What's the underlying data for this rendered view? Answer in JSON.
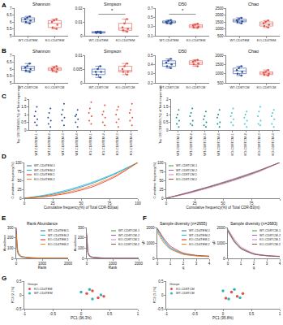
{
  "chart_data": [
    {
      "type": "box",
      "panel": "A",
      "title": "Shannon",
      "categories": [
        "WT-CD4TEM",
        "KO-CD4TEM"
      ],
      "colors": [
        "#2b4c9b",
        "#e0524a"
      ],
      "values": [
        [
          6.3,
          6.1,
          6.0,
          6.2,
          6.4,
          5.9
        ],
        [
          6.0,
          5.6,
          6.2,
          5.5,
          5.8,
          6.1
        ]
      ],
      "ylim": [
        5,
        7
      ],
      "yticks": [
        5,
        5.5,
        6,
        6.5,
        7
      ]
    },
    {
      "type": "box",
      "title": "Simpson",
      "categories": [
        "WT-CD4TEM",
        "KO-CD4TEM"
      ],
      "colors": [
        "#2b4c9b",
        "#e0524a"
      ],
      "values": [
        [
          0.002,
          0.003,
          0.002,
          0.0025,
          0.003,
          0.002
        ],
        [
          0.004,
          0.009,
          0.006,
          0.003,
          0.012,
          0.005
        ]
      ],
      "ylim": [
        0,
        0.02
      ],
      "yticks": [
        0,
        0.01,
        0.02
      ],
      "annotations": [
        {
          "text": "*"
        }
      ]
    },
    {
      "type": "box",
      "title": "D50",
      "categories": [
        "WT-CD4TEM",
        "KO-CD4TEM"
      ],
      "colors": [
        "#2b4c9b",
        "#e0524a"
      ],
      "values": [
        [
          0.42,
          0.38,
          0.4,
          0.36,
          0.44,
          0.39
        ],
        [
          0.3,
          0.34,
          0.28,
          0.32,
          0.36,
          0.27
        ]
      ],
      "ylim": [
        0.1,
        0.7
      ],
      "yticks": [
        0.1,
        0.3,
        0.5,
        0.7
      ],
      "annotations": [
        {
          "text": "*"
        }
      ]
    },
    {
      "type": "box",
      "title": "Chao",
      "categories": [
        "WT-CD4TEM",
        "KO-CD4TEM"
      ],
      "colors": [
        "#2b4c9b",
        "#e0524a"
      ],
      "values": [
        [
          1700,
          1500,
          1600,
          1400,
          1800,
          1550
        ],
        [
          1300,
          1600,
          1200,
          1500,
          1400,
          1100
        ]
      ],
      "ylim": [
        500,
        2500
      ],
      "yticks": [
        500,
        1000,
        1500,
        2000,
        2500
      ]
    },
    {
      "type": "box",
      "panel": "B",
      "title": "Shannon",
      "categories": [
        "WT-CD8TCM",
        "KO-CD8TCM"
      ],
      "colors": [
        "#2b4c9b",
        "#e0524a"
      ],
      "values": [
        [
          6.2,
          6.0,
          5.8,
          6.4,
          6.1,
          5.9
        ],
        [
          6.0,
          5.9,
          6.2,
          5.8,
          6.1,
          6.0
        ]
      ],
      "ylim": [
        5,
        7
      ],
      "yticks": [
        5,
        5.5,
        6,
        6.5,
        7
      ]
    },
    {
      "type": "box",
      "title": "Simpson",
      "categories": [
        "WT-CD8TCM",
        "KO-CD8TCM"
      ],
      "colors": [
        "#2b4c9b",
        "#e0524a"
      ],
      "values": [
        [
          0.004,
          0.003,
          0.006,
          0.005,
          0.002,
          0.004
        ],
        [
          0.005,
          0.004,
          0.006,
          0.003,
          0.007,
          0.004
        ]
      ],
      "ylim": [
        0,
        0.01
      ],
      "yticks": [
        0,
        0.005,
        0.01
      ]
    },
    {
      "type": "box",
      "title": "D50",
      "categories": [
        "WT-CD8TCM",
        "KO-CD8TCM"
      ],
      "colors": [
        "#2b4c9b",
        "#e0524a"
      ],
      "values": [
        [
          0.4,
          0.44,
          0.38,
          0.46,
          0.42,
          0.36
        ],
        [
          0.43,
          0.4,
          0.45,
          0.38,
          0.41,
          0.44
        ]
      ],
      "ylim": [
        0.2,
        0.5
      ],
      "yticks": [
        0.2,
        0.3,
        0.4,
        0.5
      ]
    },
    {
      "type": "box",
      "title": "Chao",
      "categories": [
        "WT-CD8TCM",
        "KO-CD8TCM"
      ],
      "colors": [
        "#2b4c9b",
        "#e0524a"
      ],
      "values": [
        [
          1200,
          1000,
          1400,
          900,
          1100,
          1300
        ],
        [
          1000,
          1100,
          900,
          1200,
          1050,
          950
        ]
      ],
      "ylim": [
        500,
        2000
      ],
      "yticks": [
        500,
        1000,
        1500,
        2000
      ]
    },
    {
      "type": "strip",
      "panel": "C",
      "y_label": "Top 100 CDR-B3 (%) of Total sequences",
      "categories": [
        "WT-CD4TEM-1",
        "WT-CD4TEM-2",
        "WT-CD4TEM-3",
        "WT-CD4TEM-4",
        "KO-CD4TEM-1",
        "KO-CD4TEM-2",
        "KO-CD4TEM-3",
        "KO-CD4TEM-4"
      ],
      "colors": [
        "#2b4c9b",
        "#2b4c9b",
        "#2b4c9b",
        "#2b4c9b",
        "#e0524a",
        "#e0524a",
        "#e0524a",
        "#e0524a"
      ],
      "values": [
        [
          0.3,
          0.5,
          0.7,
          0.9,
          1.2,
          1.5
        ],
        [
          0.2,
          0.4,
          0.6,
          0.8,
          1.1,
          1.4
        ],
        [
          0.3,
          0.6,
          0.8,
          1.0,
          1.3,
          1.7
        ],
        [
          0.2,
          0.5,
          0.7,
          0.9,
          1.0,
          1.3
        ],
        [
          0.4,
          0.6,
          0.9,
          1.1,
          1.4,
          1.8
        ],
        [
          0.3,
          0.5,
          0.8,
          1.0,
          1.2,
          1.6
        ],
        [
          0.2,
          0.5,
          0.7,
          1.0,
          1.3,
          1.5
        ],
        [
          0.3,
          0.6,
          0.8,
          1.1,
          1.3,
          1.7
        ]
      ],
      "ylim": [
        0,
        2
      ],
      "yticks": [
        0,
        0.5,
        1,
        1.5,
        2
      ]
    },
    {
      "type": "strip",
      "y_label": "Top 100 CDR-B3 (%) of Total sequences",
      "categories": [
        "WT-CD8TCM-1",
        "WT-CD8TCM-2",
        "WT-CD8TCM-3",
        "WT-CD8TCM-4",
        "KO-CD8TCM-1",
        "KO-CD8TCM-2",
        "KO-CD8TCM-3",
        "KO-CD8TCM-4"
      ],
      "colors": [
        "#1f8f8f",
        "#1f8f8f",
        "#1f8f8f",
        "#1f8f8f",
        "#4fc7c7",
        "#4fc7c7",
        "#4fc7c7",
        "#4fc7c7"
      ],
      "values": [
        [
          0.2,
          0.4,
          0.6,
          0.8,
          1.0,
          1.3
        ],
        [
          0.3,
          0.4,
          0.6,
          0.9,
          1.1,
          1.4
        ],
        [
          0.2,
          0.3,
          0.5,
          0.7,
          0.9,
          1.2
        ],
        [
          0.2,
          0.4,
          0.5,
          0.8,
          1.0,
          1.3
        ],
        [
          0.3,
          0.5,
          0.7,
          0.9,
          1.1,
          1.4
        ],
        [
          0.2,
          0.4,
          0.6,
          0.8,
          1.0,
          1.2
        ],
        [
          0.3,
          0.4,
          0.6,
          0.9,
          1.2,
          1.5
        ],
        [
          0.2,
          0.4,
          0.7,
          0.9,
          1.1,
          1.3
        ]
      ],
      "ylim": [
        0,
        2
      ],
      "yticks": [
        0,
        0.5,
        1,
        1.5,
        2
      ]
    },
    {
      "type": "line",
      "panel": "D",
      "x_label": "Cumulative frequency(%) of Total CDR-B3(aa)",
      "y_label": "Cumulative frequency(%)",
      "x": [
        0,
        20,
        40,
        60,
        80,
        100
      ],
      "xlim": [
        0,
        100
      ],
      "xticks": [
        0,
        25,
        50,
        75,
        100
      ],
      "ylim": [
        0,
        100
      ],
      "yticks": [
        0,
        25,
        50,
        75,
        100
      ],
      "legend": "top left",
      "series": [
        {
          "name": "WT-CD4TEM-1",
          "color": "#1f77b4",
          "values": [
            0,
            8,
            22,
            42,
            68,
            100
          ]
        },
        {
          "name": "WT-CD4TEM-2",
          "color": "#17becf",
          "values": [
            0,
            10,
            25,
            45,
            70,
            100
          ]
        },
        {
          "name": "KO-CD4TEM-1",
          "color": "#d62728",
          "values": [
            0,
            5,
            15,
            32,
            60,
            100
          ]
        },
        {
          "name": "KO-CD4TEM-2",
          "color": "#ff7f0e",
          "values": [
            0,
            6,
            18,
            36,
            63,
            100
          ]
        }
      ]
    },
    {
      "type": "line",
      "x_label": "Cumulative frequency(%) of Total CDR-B3(nt)",
      "y_label": "Cumulative frequency(%)",
      "x": [
        0,
        20,
        40,
        60,
        80,
        100
      ],
      "xlim": [
        0,
        100
      ],
      "xticks": [
        0,
        25,
        50,
        75,
        100
      ],
      "ylim": [
        0,
        100
      ],
      "yticks": [
        0,
        25,
        50,
        75,
        100
      ],
      "legend": "top left",
      "series": [
        {
          "name": "WT-CD8TCM-1",
          "color": "#2ca02c",
          "values": [
            0,
            15,
            33,
            52,
            74,
            100
          ]
        },
        {
          "name": "WT-CD8TCM-2",
          "color": "#9467bd",
          "values": [
            0,
            17,
            35,
            55,
            76,
            100
          ]
        },
        {
          "name": "KO-CD8TCM-1",
          "color": "#e377c2",
          "values": [
            0,
            14,
            31,
            50,
            72,
            100
          ]
        },
        {
          "name": "KO-CD8TCM-2",
          "color": "#8c564b",
          "values": [
            0,
            16,
            34,
            53,
            75,
            100
          ]
        }
      ]
    },
    {
      "type": "line",
      "panel": "E",
      "title": "Rank Abundance",
      "x_label": "Rank",
      "y_label": "Abundance",
      "x": [
        1,
        50,
        100,
        200,
        500,
        1000,
        2000
      ],
      "xlim": [
        0,
        2000
      ],
      "xticks": [
        0,
        1000,
        2000
      ],
      "ylim": [
        0,
        300
      ],
      "yticks": [
        0,
        100,
        200,
        300
      ],
      "legend": "top right",
      "series": [
        {
          "name": "WT-CD4TEM-1",
          "color": "#1f77b4",
          "values": [
            280,
            70,
            35,
            16,
            6,
            3,
            1
          ]
        },
        {
          "name": "WT-CD4TEM-2",
          "color": "#17becf",
          "values": [
            260,
            60,
            30,
            14,
            5,
            2,
            1
          ]
        },
        {
          "name": "KO-CD4TEM-1",
          "color": "#d62728",
          "values": [
            300,
            90,
            45,
            20,
            8,
            3,
            1
          ]
        },
        {
          "name": "KO-CD4TEM-2",
          "color": "#ff7f0e",
          "values": [
            240,
            80,
            40,
            18,
            7,
            3,
            1
          ]
        }
      ]
    },
    {
      "type": "line",
      "x_label": "Rank",
      "y_label": "Abundance",
      "x": [
        1,
        50,
        100,
        200,
        500,
        1000,
        2000
      ],
      "xlim": [
        0,
        2000
      ],
      "xticks": [
        0,
        1000,
        2000
      ],
      "ylim": [
        0,
        300
      ],
      "yticks": [
        0,
        100,
        200,
        300
      ],
      "legend": "top right",
      "series": [
        {
          "name": "WT-CD8TCM-1",
          "color": "#2ca02c",
          "values": [
            220,
            50,
            25,
            12,
            5,
            2,
            1
          ]
        },
        {
          "name": "WT-CD8TCM-2",
          "color": "#9467bd",
          "values": [
            200,
            45,
            22,
            10,
            4,
            2,
            1
          ]
        },
        {
          "name": "KO-CD8TCM-1",
          "color": "#e377c2",
          "values": [
            250,
            60,
            30,
            14,
            6,
            2,
            1
          ]
        },
        {
          "name": "KO-CD8TCM-2",
          "color": "#8c564b",
          "values": [
            230,
            55,
            28,
            13,
            5,
            2,
            1
          ]
        }
      ]
    },
    {
      "type": "line",
      "panel": "F",
      "title": "Sample diversity (n=2655)",
      "x_label": "q",
      "y_label": "qD",
      "x": [
        0,
        0.5,
        1,
        2,
        3,
        4
      ],
      "xlim": [
        0,
        4
      ],
      "xticks": [
        0,
        1,
        2,
        3,
        4
      ],
      "ylim": [
        0,
        2000
      ],
      "yticks": [
        0,
        1000,
        2000
      ],
      "legend": "top right",
      "series": [
        {
          "name": "WT-CD4TEM-1",
          "color": "#1f77b4",
          "values": [
            1900,
            1200,
            700,
            300,
            180,
            130
          ]
        },
        {
          "name": "WT-CD4TEM-2",
          "color": "#17becf",
          "values": [
            1800,
            1100,
            650,
            280,
            170,
            120
          ]
        },
        {
          "name": "KO-CD4TEM-1",
          "color": "#d62728",
          "values": [
            1950,
            1300,
            800,
            350,
            200,
            150
          ]
        },
        {
          "name": "KO-CD4TEM-2",
          "color": "#ff7f0e",
          "values": [
            1700,
            1000,
            600,
            260,
            160,
            110
          ]
        }
      ]
    },
    {
      "type": "line",
      "title": "Sample diversity (n=2683)",
      "x_label": "q",
      "y_label": "qD",
      "x": [
        0,
        0.5,
        1,
        2,
        3,
        4
      ],
      "xlim": [
        0,
        4
      ],
      "xticks": [
        0,
        1,
        2,
        3,
        4
      ],
      "ylim": [
        0,
        2000
      ],
      "yticks": [
        0,
        1000,
        2000
      ],
      "legend": "top right",
      "series": [
        {
          "name": "WT-CD8TCM-1",
          "color": "#2ca02c",
          "values": [
            1850,
            1150,
            680,
            290,
            175,
            125
          ]
        },
        {
          "name": "WT-CD8TCM-2",
          "color": "#9467bd",
          "values": [
            1750,
            1050,
            620,
            270,
            165,
            115
          ]
        },
        {
          "name": "KO-CD8TCM-1",
          "color": "#e377c2",
          "values": [
            1900,
            1250,
            760,
            330,
            190,
            140
          ]
        },
        {
          "name": "KO-CD8TCM-2",
          "color": "#8c564b",
          "values": [
            1800,
            1100,
            660,
            285,
            172,
            122
          ]
        }
      ]
    },
    {
      "type": "scatter",
      "panel": "G",
      "x_label": "PC1 (96.3%)",
      "y_label": "PC2 (2.1%)",
      "xlim": [
        -1,
        1
      ],
      "xticks": [
        -1,
        -0.5,
        0,
        0.5,
        1
      ],
      "ylim": [
        -0.5,
        0.5
      ],
      "yticks": [
        -0.5,
        0,
        0.5
      ],
      "legend": "top left",
      "legend_title": "Groups",
      "series": [
        {
          "name": "KO-CD4TEM",
          "color": "#e0524a",
          "x": [
            0.1,
            0.3,
            0.2,
            0.4
          ],
          "values": [
            0.05,
            -0.1,
            0.15,
            -0.05
          ]
        },
        {
          "name": "WT-CD4TEM",
          "color": "#2fb5b5",
          "x": [
            0.2,
            0.0,
            0.35,
            0.15
          ],
          "values": [
            -0.15,
            0.1,
            0.0,
            0.2
          ]
        }
      ]
    },
    {
      "type": "scatter",
      "x_label": "PC1 (95.8%)",
      "y_label": "PC2 (3.1%)",
      "xlim": [
        -1,
        1
      ],
      "xticks": [
        -1,
        -0.5,
        0,
        0.5,
        1
      ],
      "ylim": [
        -0.5,
        0.5
      ],
      "yticks": [
        -0.5,
        0,
        0.5
      ],
      "legend": "top left",
      "legend_title": "Groups",
      "series": [
        {
          "name": "KO-CD8TCM",
          "color": "#e0524a",
          "x": [
            0.15,
            0.25,
            0.05,
            0.35
          ],
          "values": [
            0.1,
            -0.05,
            -0.12,
            0.05
          ]
        },
        {
          "name": "WT-CD8TCM",
          "color": "#2fb5b5",
          "x": [
            0.0,
            0.2,
            0.3,
            0.1
          ],
          "values": [
            0.15,
            0.2,
            -0.1,
            -0.15
          ]
        }
      ]
    }
  ]
}
